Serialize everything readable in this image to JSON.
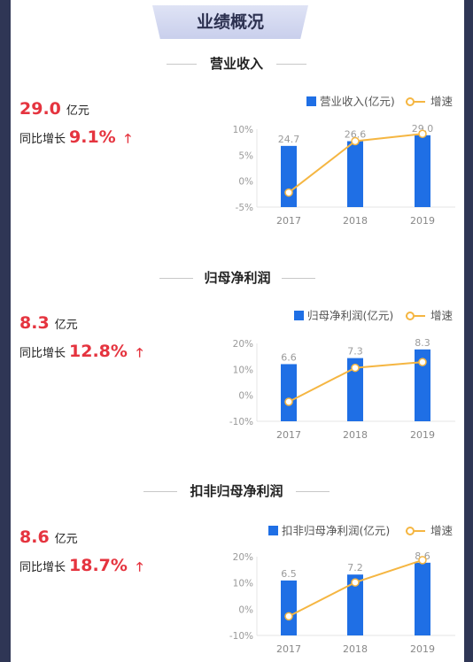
{
  "header": {
    "title": "业绩概况"
  },
  "sections": [
    {
      "title": "营业收入",
      "value": "29.0",
      "unit": "亿元",
      "yoy_label": "同比增长",
      "yoy_value": "9.1%",
      "chart_data": {
        "type": "bar",
        "categories": [
          "2017",
          "2018",
          "2019"
        ],
        "series": [
          {
            "name": "营业收入(亿元)",
            "values": [
              24.7,
              26.6,
              29.0
            ],
            "value_labels": [
              "24.7",
              "26.6",
              "29.0"
            ],
            "color": "#1f6fe5"
          },
          {
            "name": "增速",
            "values": [
              -2.2,
              7.7,
              9.1
            ],
            "color": "#f5b642"
          }
        ],
        "yticks": [
          "10%",
          "5%",
          "0%",
          "-5%"
        ],
        "ylim": [
          -5,
          10
        ]
      }
    },
    {
      "title": "归母净利润",
      "value": "8.3",
      "unit": "亿元",
      "yoy_label": "同比增长",
      "yoy_value": "12.8%",
      "chart_data": {
        "type": "bar",
        "categories": [
          "2017",
          "2018",
          "2019"
        ],
        "series": [
          {
            "name": "归母净利润(亿元)",
            "values": [
              6.6,
              7.3,
              8.3
            ],
            "value_labels": [
              "6.6",
              "7.3",
              "8.3"
            ],
            "color": "#1f6fe5"
          },
          {
            "name": "增速",
            "values": [
              -2.5,
              10.6,
              12.8
            ],
            "color": "#f5b642"
          }
        ],
        "yticks": [
          "20%",
          "10%",
          "0%",
          "-10%"
        ],
        "ylim": [
          -10,
          20
        ]
      }
    },
    {
      "title": "扣非归母净利润",
      "value": "8.6",
      "unit": "亿元",
      "yoy_label": "同比增长",
      "yoy_value": "18.7%",
      "chart_data": {
        "type": "bar",
        "categories": [
          "2017",
          "2018",
          "2019"
        ],
        "series": [
          {
            "name": "扣非归母净利润(亿元)",
            "values": [
              6.5,
              7.2,
              8.6
            ],
            "value_labels": [
              "6.5",
              "7.2",
              "8.6"
            ],
            "color": "#1f6fe5"
          },
          {
            "name": "增速",
            "values": [
              -2.7,
              10.2,
              18.7
            ],
            "color": "#f5b642"
          }
        ],
        "yticks": [
          "20%",
          "10%",
          "0%",
          "-10%"
        ],
        "ylim": [
          -10,
          20
        ]
      }
    }
  ],
  "colors": {
    "accent": "#e5343f",
    "bar": "#1f6fe5",
    "line": "#f5b642"
  }
}
